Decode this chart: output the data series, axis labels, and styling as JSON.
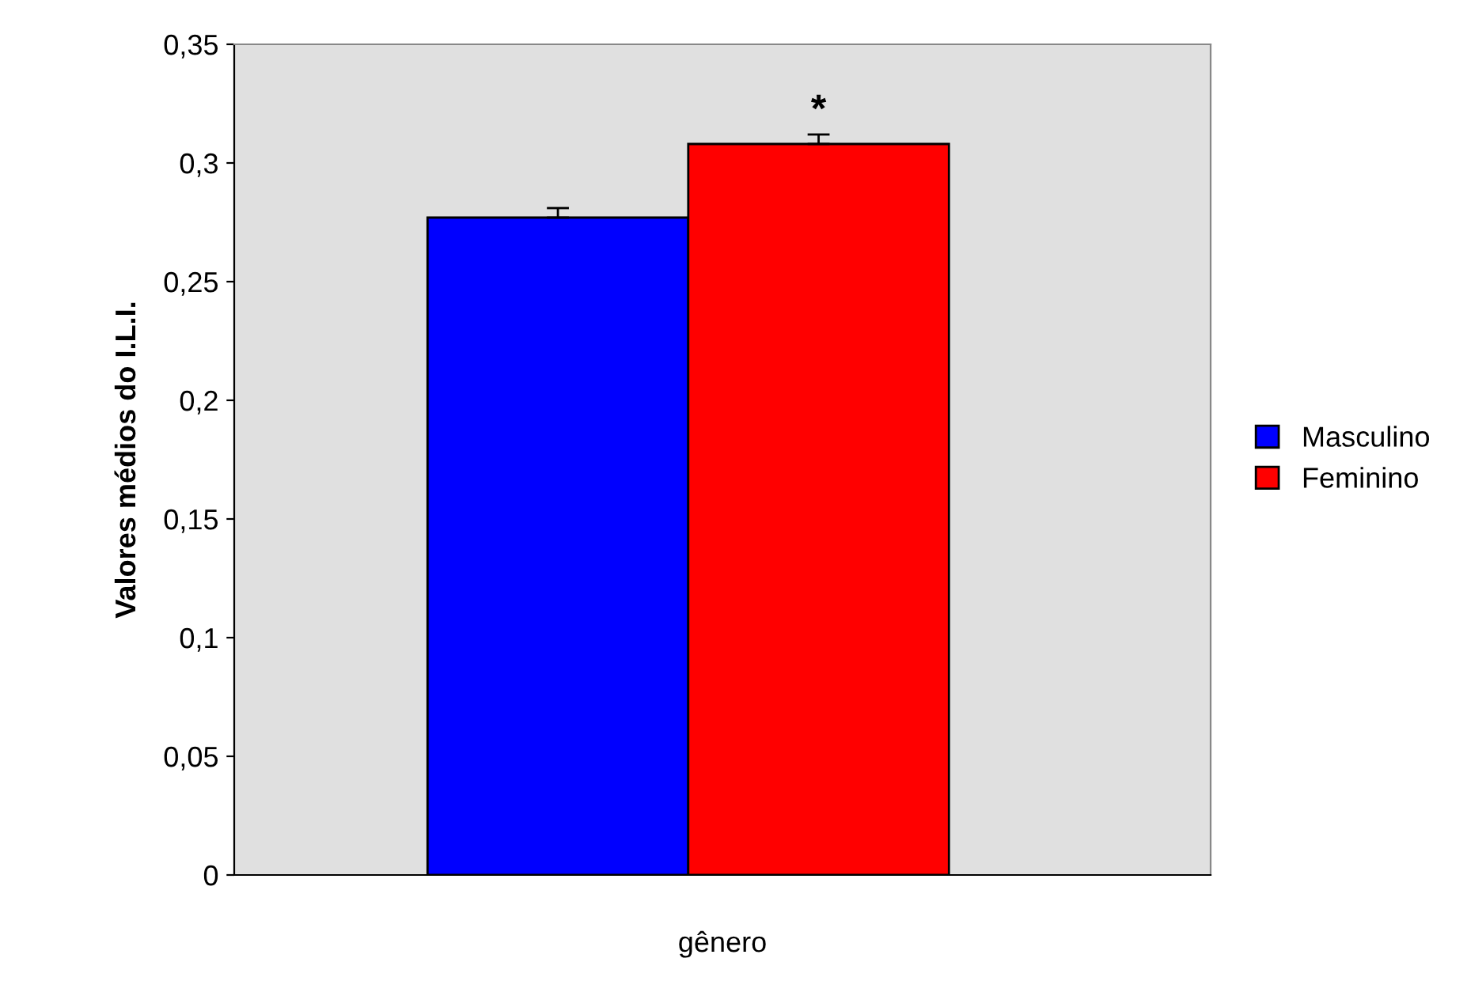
{
  "chart_data": {
    "type": "bar",
    "xlabel": "gênero",
    "ylabel": "Valores médios do I.L.I.",
    "categories": [
      null
    ],
    "series": [
      {
        "name": "Masculino",
        "color": "#0000ff",
        "values": [
          0.277
        ],
        "errors": [
          0.004
        ]
      },
      {
        "name": "Feminino",
        "color": "#ff0000",
        "values": [
          0.308
        ],
        "errors": [
          0.004
        ]
      }
    ],
    "ylim": [
      0,
      0.35
    ],
    "yticks": [
      0,
      {
        "value": 0.05,
        "label": "0,05"
      },
      {
        "value": 0.1,
        "label": "0,1"
      },
      {
        "value": 0.15,
        "label": "0,15"
      },
      {
        "value": 0.2,
        "label": "0,2"
      },
      {
        "value": 0.25,
        "label": "0,25"
      },
      {
        "value": 0.3,
        "label": "0,3"
      },
      {
        "value": 0.35,
        "label": "0,35"
      }
    ],
    "annotations": [
      "*"
    ],
    "legend": "right",
    "grid": false
  }
}
